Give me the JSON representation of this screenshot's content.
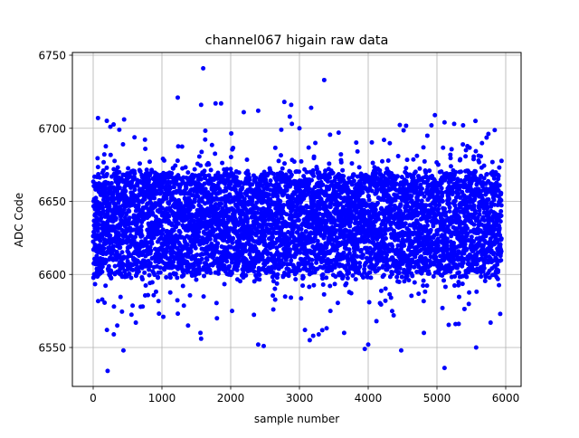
{
  "chart_data": {
    "type": "scatter",
    "title": "channel067 higain raw data",
    "xlabel": "sample number",
    "ylabel": "ADC Code",
    "xlim": [
      -300,
      6200
    ],
    "ylim": [
      6523,
      6752
    ],
    "xticks": [
      0,
      1000,
      2000,
      3000,
      4000,
      5000,
      6000
    ],
    "yticks": [
      6550,
      6600,
      6650,
      6700,
      6750
    ],
    "grid": true,
    "legend": "none",
    "marker_color": "#0000ff",
    "n_samples": 5940,
    "bulk_band": [
      6600,
      6670
    ],
    "center_value": 6636,
    "points": [
      [
        1600,
        6741
      ],
      [
        3360,
        6733
      ],
      [
        1230,
        6721
      ],
      [
        1570,
        6716
      ],
      [
        1780,
        6717
      ],
      [
        1860,
        6717
      ],
      [
        2190,
        6711
      ],
      [
        2400,
        6712
      ],
      [
        2780,
        6718
      ],
      [
        2880,
        6716
      ],
      [
        3170,
        6714
      ],
      [
        2860,
        6708
      ],
      [
        2890,
        6703
      ],
      [
        3000,
        6700
      ],
      [
        4970,
        6709
      ],
      [
        5250,
        6703
      ],
      [
        5110,
        6704
      ],
      [
        5380,
        6702
      ],
      [
        5560,
        6705
      ],
      [
        70,
        6707
      ],
      [
        450,
        6706
      ],
      [
        250,
        6701
      ],
      [
        380,
        6699
      ],
      [
        3570,
        6697
      ],
      [
        4920,
        6702
      ],
      [
        5110,
        6536
      ],
      [
        210,
        6534
      ],
      [
        440,
        6548
      ],
      [
        2480,
        6551
      ],
      [
        2400,
        6552
      ],
      [
        3950,
        6549
      ],
      [
        4000,
        6552
      ],
      [
        4480,
        6548
      ],
      [
        5570,
        6550
      ],
      [
        3150,
        6555
      ],
      [
        3200,
        6558
      ],
      [
        3280,
        6559
      ],
      [
        300,
        6559
      ],
      [
        1570,
        6556
      ],
      [
        1560,
        6560
      ],
      [
        3080,
        6562
      ],
      [
        4810,
        6560
      ],
      [
        3650,
        6560
      ],
      [
        620,
        6567
      ],
      [
        1020,
        6571
      ],
      [
        1380,
        6565
      ],
      [
        4120,
        6568
      ],
      [
        5270,
        6566
      ],
      [
        5780,
        6567
      ],
      [
        200,
        6562
      ],
      [
        350,
        6565
      ],
      [
        1800,
        6570
      ],
      [
        2020,
        6575
      ],
      [
        2620,
        6576
      ],
      [
        3450,
        6575
      ],
      [
        4370,
        6572
      ],
      [
        5920,
        6573
      ],
      [
        5080,
        6577
      ],
      [
        4250,
        6582
      ],
      [
        720,
        6578
      ]
    ]
  }
}
